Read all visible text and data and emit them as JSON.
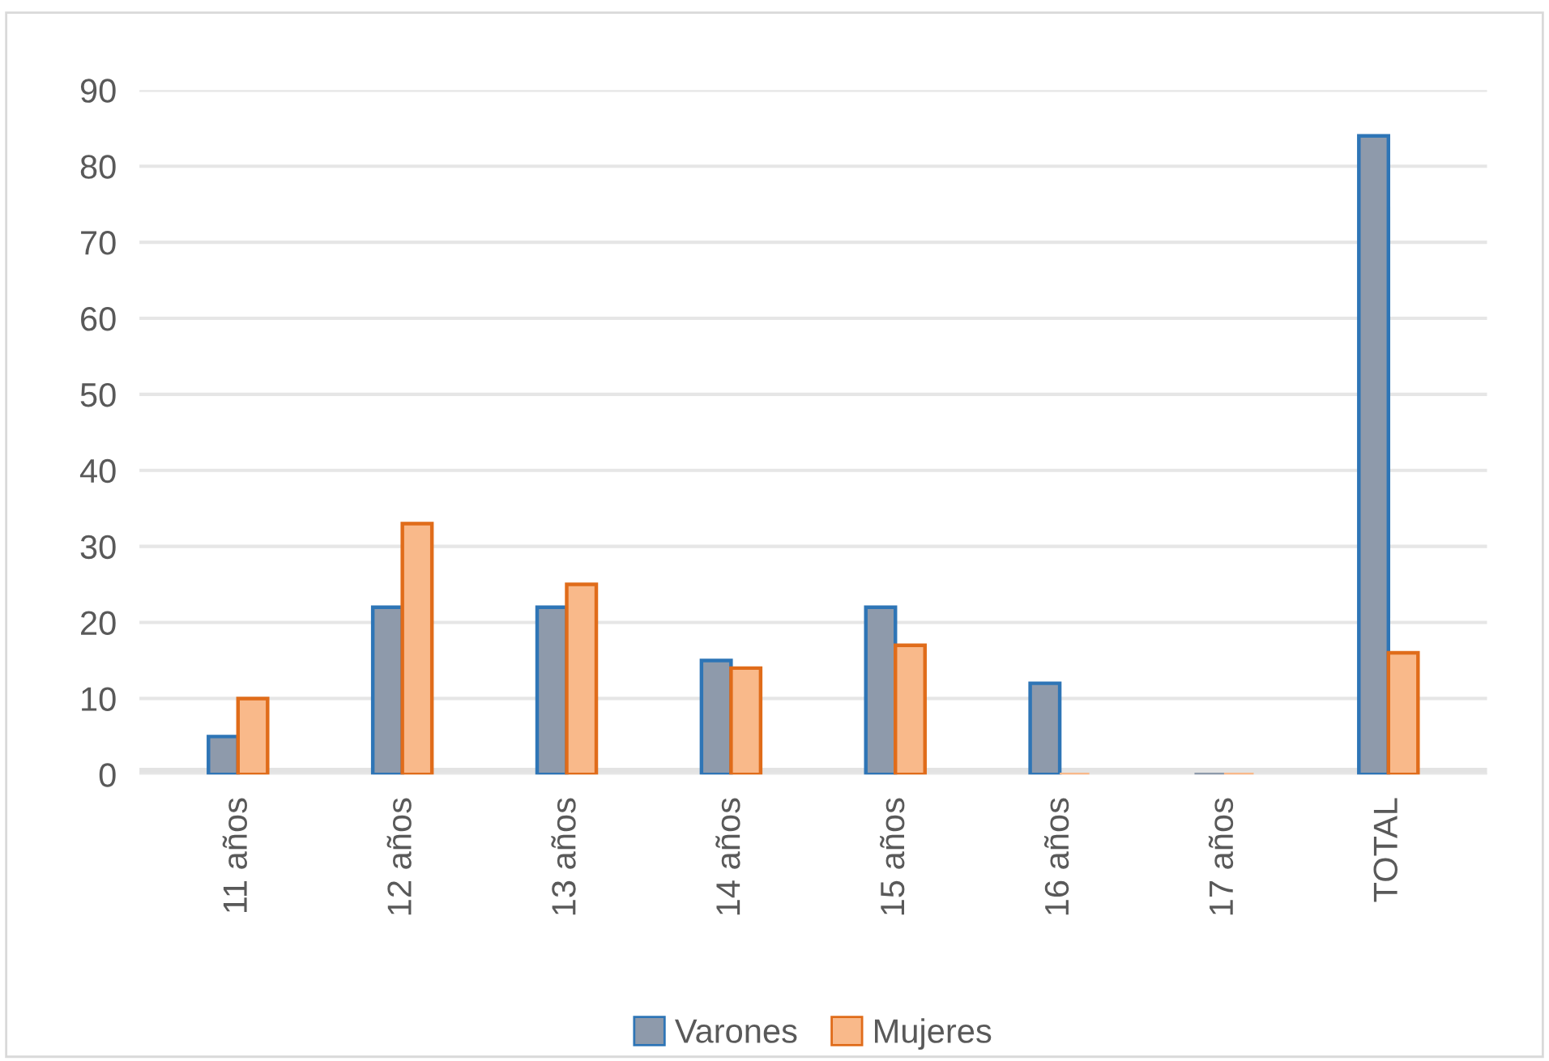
{
  "chart_data": {
    "type": "bar",
    "categories": [
      "11 años",
      "12 años",
      "13 años",
      "14 años",
      "15 años",
      "16 años",
      "17 años",
      "TOTAL"
    ],
    "series": [
      {
        "name": "Varones",
        "color": "#8e9aab",
        "values": [
          5,
          22,
          22,
          15,
          22,
          12,
          0,
          84
        ]
      },
      {
        "name": "Mujeres",
        "color": "#f9b98a",
        "values": [
          10,
          33,
          25,
          14,
          17,
          0,
          0,
          16
        ]
      }
    ],
    "ylim": [
      0,
      90
    ],
    "yticks": [
      0,
      10,
      20,
      30,
      40,
      50,
      60,
      70,
      80,
      90
    ],
    "grid": "y",
    "legend": "bottom"
  }
}
